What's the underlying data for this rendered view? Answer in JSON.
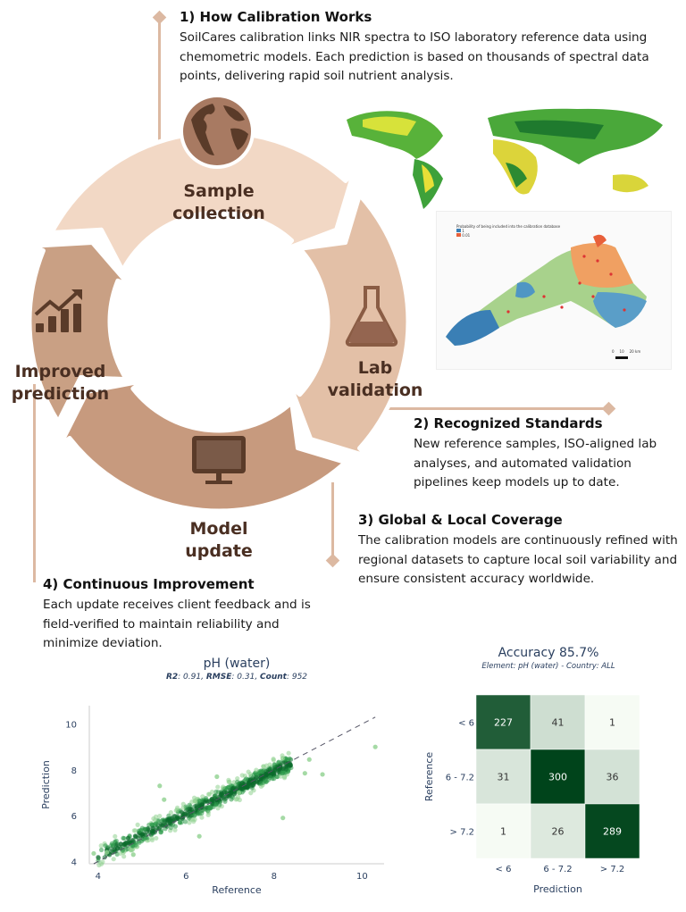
{
  "sections": [
    {
      "title": "1) How Calibration Works",
      "body": "SoilCares calibration links NIR spectra to ISO laboratory reference data using chemometric models. Each prediction is based on thousands of spectral data points, delivering rapid soil nutrient analysis."
    },
    {
      "title": "2) Recognized Standards",
      "body": "New reference samples, ISO-aligned lab analyses, and automated validation pipelines keep models up to date."
    },
    {
      "title": "3) Global & Local Coverage",
      "body": "The calibration models are continuously refined with regional datasets to capture local soil variability and ensure consistent accuracy worldwide."
    },
    {
      "title": "4) Continuous Improvement",
      "body": "Each update receives client feedback and is field-verified to maintain reliability and minimize deviation."
    }
  ],
  "cycle": {
    "steps": [
      {
        "line1": "Sample",
        "line2": "collection",
        "icon": "globe-icon",
        "color": "#f2d8c5"
      },
      {
        "line1": "Lab",
        "line2": "validation",
        "icon": "flask-icon",
        "color": "#e3c0a7"
      },
      {
        "line1": "Model",
        "line2": "update",
        "icon": "monitor-icon",
        "color": "#c79a7e"
      },
      {
        "line1": "Improved",
        "line2": "prediction",
        "icon": "growth-chart-icon",
        "color": "#c9a084"
      }
    ],
    "text_color": "#4a2f22"
  },
  "regional_map": {
    "legend_title": "Probability of being included into the calibration database",
    "legend_high": "1",
    "legend_low": "0.01",
    "scale_labels": [
      "0",
      "10",
      "20 km"
    ]
  },
  "chart_data": [
    {
      "type": "scatter",
      "title": "pH (water)",
      "subtitle_parts": {
        "r2_label": "R2",
        "r2": "0.91",
        "rmse_label": "RMSE",
        "rmse": "0.31",
        "count_label": "Count",
        "count": "952"
      },
      "xlabel": "Reference",
      "ylabel": "Prediction",
      "xlim": [
        3.8,
        10.5
      ],
      "ylim": [
        3.9,
        10.8
      ],
      "xticks": [
        "4",
        "6",
        "8",
        "10"
      ],
      "yticks": [
        "4",
        "6",
        "8",
        "10"
      ],
      "reference_line": "y = x (dashed)",
      "outliers": [
        [
          10.3,
          9.0
        ],
        [
          8.8,
          8.45
        ],
        [
          9.1,
          7.8
        ],
        [
          8.7,
          7.85
        ],
        [
          8.2,
          5.9
        ],
        [
          5.4,
          7.3
        ],
        [
          6.7,
          7.7
        ],
        [
          4.2,
          4.4
        ],
        [
          3.9,
          4.35
        ],
        [
          4.8,
          4.3
        ],
        [
          6.3,
          5.1
        ],
        [
          7.2,
          7.0
        ],
        [
          5.5,
          6.7
        ]
      ],
      "trend": {
        "x_min": 4.0,
        "x_max": 8.4,
        "slope": 0.93,
        "intercept": 0.5,
        "spread": 0.3
      },
      "color": "#1f8a3c"
    },
    {
      "type": "heatmap",
      "title": "Accuracy 85.7%",
      "subtitle": "Element: pH (water) - Country: ALL",
      "xlabel": "Prediction",
      "ylabel": "Reference",
      "x_categories": [
        "< 6",
        "6 - 7.2",
        "> 7.2"
      ],
      "y_categories": [
        "< 6",
        "6 - 7.2",
        "> 7.2"
      ],
      "values": [
        [
          227,
          41,
          1
        ],
        [
          31,
          300,
          36
        ],
        [
          1,
          26,
          289
        ]
      ],
      "colorscale": "Greens"
    }
  ]
}
